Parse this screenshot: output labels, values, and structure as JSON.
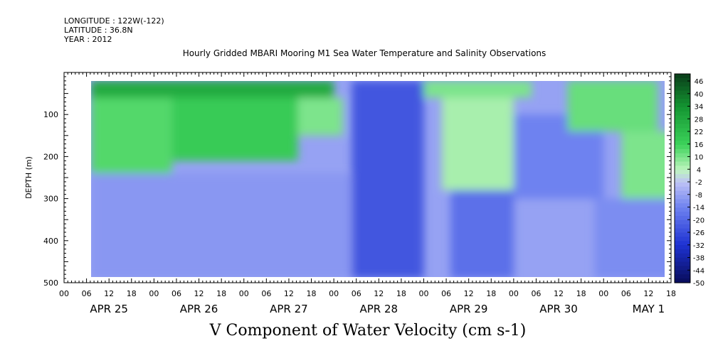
{
  "header": {
    "longitude": "LONGITUDE : 122W(-122)",
    "latitude": "LATITUDE : 36.8N",
    "year": "YEAR : 2012"
  },
  "chart_data": {
    "type": "heatmap",
    "title": "Hourly Gridded MBARI Mooring M1 Sea Water Temperature and Salinity Observations",
    "xlabel": "V Component of Water Velocity (cm s-1)",
    "ylabel": "DEPTH (m)",
    "ylim": [
      500,
      0
    ],
    "yticks": [
      100,
      200,
      300,
      400,
      500
    ],
    "xtick_hours": [
      "00",
      "06",
      "12",
      "18",
      "00",
      "06",
      "12",
      "18",
      "00",
      "06",
      "12",
      "18",
      "00",
      "06",
      "12",
      "18",
      "00",
      "06",
      "12",
      "18",
      "00",
      "06",
      "12",
      "18",
      "00",
      "06",
      "12",
      "18"
    ],
    "day_labels": [
      "APR 25",
      "APR 26",
      "APR 27",
      "APR 28",
      "APR 29",
      "APR 30",
      "MAY  1"
    ],
    "colorbar_labels": [
      "46",
      "40",
      "34",
      "28",
      "22",
      "16",
      "10",
      "4",
      "-2",
      "-8",
      "-14",
      "-20",
      "-26",
      "-32",
      "-38",
      "-44",
      "-50"
    ],
    "colorbar_range": [
      -50,
      50
    ],
    "colors": {
      "strong_positive": "#0b4a1a",
      "positive": "#1fb83c",
      "weak_positive": "#a8f0a8",
      "weak_negative": "#b4b8f0",
      "negative": "#5a6ef0",
      "strong_negative": "#1a2aa0"
    },
    "regions": [
      {
        "day_start": 0.3,
        "day_end": 3.0,
        "depth_top": 20,
        "depth_bottom": 60,
        "value": 28
      },
      {
        "day_start": 0.3,
        "day_end": 1.2,
        "depth_top": 60,
        "depth_bottom": 240,
        "value": 14
      },
      {
        "day_start": 1.2,
        "day_end": 2.6,
        "depth_top": 60,
        "depth_bottom": 210,
        "value": 18
      },
      {
        "day_start": 2.6,
        "day_end": 3.1,
        "depth_top": 60,
        "depth_bottom": 150,
        "value": 10
      },
      {
        "day_start": 0.3,
        "day_end": 3.2,
        "depth_top": 240,
        "depth_bottom": 490,
        "value": -10
      },
      {
        "day_start": 3.2,
        "day_end": 4.0,
        "depth_top": 20,
        "depth_bottom": 490,
        "value": -24
      },
      {
        "day_start": 4.2,
        "day_end": 5.0,
        "depth_top": 60,
        "depth_bottom": 280,
        "value": 6
      },
      {
        "day_start": 4.0,
        "day_end": 5.2,
        "depth_top": 20,
        "depth_bottom": 60,
        "value": 10
      },
      {
        "day_start": 4.3,
        "day_end": 5.0,
        "depth_top": 280,
        "depth_bottom": 490,
        "value": -18
      },
      {
        "day_start": 5.0,
        "day_end": 6.0,
        "depth_top": 100,
        "depth_bottom": 300,
        "value": -14
      },
      {
        "day_start": 5.6,
        "day_end": 6.6,
        "depth_top": 20,
        "depth_bottom": 140,
        "value": 12
      },
      {
        "day_start": 6.2,
        "day_end": 6.9,
        "depth_top": 140,
        "depth_bottom": 300,
        "value": 10
      },
      {
        "day_start": 5.9,
        "day_end": 6.9,
        "depth_top": 300,
        "depth_bottom": 490,
        "value": -12
      }
    ]
  }
}
